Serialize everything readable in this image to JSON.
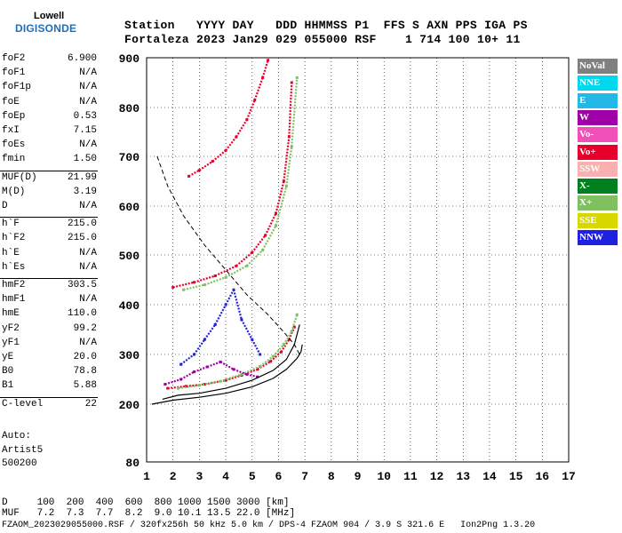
{
  "logo": {
    "top": "Lowell",
    "bottom": "DIGISONDE"
  },
  "header": {
    "row1": "Station   YYYY DAY   DDD HHMMSS P1  FFS S AXN PPS IGA PS",
    "row2": "Fortaleza 2023 Jan29 029 055000 RSF    1 714 100 10+ 11"
  },
  "params": [
    {
      "name": "foF2",
      "value": "6.900"
    },
    {
      "name": "foF1",
      "value": "N/A"
    },
    {
      "name": "foF1p",
      "value": "N/A"
    },
    {
      "name": "foE",
      "value": "N/A"
    },
    {
      "name": "foEp",
      "value": "0.53"
    },
    {
      "name": "fxI",
      "value": "7.15"
    },
    {
      "name": "foEs",
      "value": "N/A"
    },
    {
      "name": "fmin",
      "value": "1.50"
    },
    {
      "name": "MUF(D)",
      "value": "21.99"
    },
    {
      "name": "M(D)",
      "value": "3.19"
    },
    {
      "name": "D",
      "value": "N/A"
    },
    {
      "name": "h`F",
      "value": "215.0"
    },
    {
      "name": "h`F2",
      "value": "215.0"
    },
    {
      "name": "h`E",
      "value": "N/A"
    },
    {
      "name": "h`Es",
      "value": "N/A"
    },
    {
      "name": "hmF2",
      "value": "303.5"
    },
    {
      "name": "hmF1",
      "value": "N/A"
    },
    {
      "name": "hmE",
      "value": "110.0"
    },
    {
      "name": "yF2",
      "value": "99.2"
    },
    {
      "name": "yF1",
      "value": "N/A"
    },
    {
      "name": "yE",
      "value": "20.0"
    },
    {
      "name": "B0",
      "value": "78.8"
    },
    {
      "name": "B1",
      "value": "5.88"
    },
    {
      "name": "C-level",
      "value": "22"
    }
  ],
  "auto": {
    "line1": "Auto:",
    "line2": "Artist5",
    "line3": "500200"
  },
  "legend": [
    {
      "label": "NoVal",
      "color": "#808080"
    },
    {
      "label": "NNE",
      "color": "#00d8f0"
    },
    {
      "label": "E",
      "color": "#22b8e8"
    },
    {
      "label": "W",
      "color": "#a000a8"
    },
    {
      "label": "Vo-",
      "color": "#f050b8"
    },
    {
      "label": "Vo+",
      "color": "#e8002c"
    },
    {
      "label": "SSW",
      "color": "#f8b0b0"
    },
    {
      "label": "X-",
      "color": "#00801e"
    },
    {
      "label": "X+",
      "color": "#80c060"
    },
    {
      "label": "SSE",
      "color": "#d8d800"
    },
    {
      "label": "NNW",
      "color": "#2020e0"
    }
  ],
  "bottom": {
    "line1": "D     100  200  400  600  800 1000 1500 3000 [km]",
    "line2": "MUF   7.2  7.3  7.7  8.2  9.0 10.1 13.5 22.0 [MHz]",
    "line3": "FZAOM_2023029055000.RSF / 320fx256h 50 kHz 5.0 km / DPS-4 FZAOM 904 / 3.9 S 321.6 E   Ion2Png 1.3.20"
  },
  "chart_data": {
    "type": "scatter",
    "xlim": [
      1,
      17
    ],
    "ylim": [
      80,
      900
    ],
    "x_ticks": [
      1,
      2,
      3,
      4,
      5,
      6,
      7,
      8,
      9,
      10,
      11,
      12,
      13,
      14,
      15,
      16,
      17
    ],
    "y_ticks": [
      80,
      200,
      300,
      400,
      500,
      600,
      700,
      800,
      900
    ],
    "grid": true,
    "legend_placement": "right",
    "profile_curve": {
      "x": [
        1.2,
        2.0,
        3.0,
        4.0,
        5.0,
        5.8,
        6.3,
        6.7,
        6.85,
        6.9
      ],
      "y": [
        200,
        208,
        214,
        222,
        235,
        252,
        270,
        292,
        305,
        320
      ]
    },
    "model_curve": {
      "x": [
        1.6,
        2.2,
        3.0,
        4.0,
        5.0,
        5.8,
        6.3,
        6.6,
        6.8
      ],
      "y": [
        210,
        218,
        222,
        232,
        248,
        268,
        290,
        320,
        360
      ]
    },
    "dashed_curve": {
      "x": [
        1.4,
        1.8,
        2.4,
        3.2,
        4.0,
        4.8,
        5.6,
        6.2,
        6.6,
        6.8
      ],
      "y": [
        700,
        640,
        580,
        520,
        470,
        420,
        380,
        345,
        320,
        300
      ]
    },
    "traces": [
      {
        "name": "Vo+",
        "points": [
          [
            1.8,
            232
          ],
          [
            2.5,
            236
          ],
          [
            3.2,
            240
          ],
          [
            4.0,
            248
          ],
          [
            4.6,
            258
          ],
          [
            5.2,
            270
          ],
          [
            5.7,
            286
          ],
          [
            6.1,
            305
          ],
          [
            6.4,
            330
          ],
          [
            6.6,
            355
          ]
        ]
      },
      {
        "name": "X+",
        "points": [
          [
            2.2,
            232
          ],
          [
            3.0,
            238
          ],
          [
            3.8,
            246
          ],
          [
            4.6,
            260
          ],
          [
            5.3,
            276
          ],
          [
            5.8,
            296
          ],
          [
            6.2,
            320
          ],
          [
            6.5,
            346
          ],
          [
            6.7,
            380
          ]
        ]
      },
      {
        "name": "Vo+",
        "points": [
          [
            2.0,
            435
          ],
          [
            2.8,
            445
          ],
          [
            3.6,
            458
          ],
          [
            4.4,
            478
          ],
          [
            5.0,
            505
          ],
          [
            5.5,
            540
          ],
          [
            5.9,
            585
          ],
          [
            6.2,
            650
          ],
          [
            6.4,
            740
          ],
          [
            6.5,
            850
          ]
        ]
      },
      {
        "name": "X+",
        "points": [
          [
            2.4,
            430
          ],
          [
            3.2,
            440
          ],
          [
            4.0,
            455
          ],
          [
            4.8,
            478
          ],
          [
            5.4,
            510
          ],
          [
            5.9,
            560
          ],
          [
            6.3,
            640
          ],
          [
            6.5,
            720
          ],
          [
            6.7,
            860
          ]
        ]
      },
      {
        "name": "Vo+",
        "points": [
          [
            2.6,
            660
          ],
          [
            3.0,
            672
          ],
          [
            3.5,
            690
          ],
          [
            4.0,
            712
          ],
          [
            4.4,
            740
          ],
          [
            4.8,
            775
          ],
          [
            5.1,
            815
          ],
          [
            5.4,
            860
          ],
          [
            5.6,
            895
          ]
        ]
      },
      {
        "name": "NNW",
        "points": [
          [
            2.3,
            280
          ],
          [
            2.8,
            300
          ],
          [
            3.2,
            330
          ],
          [
            3.6,
            360
          ],
          [
            4.0,
            400
          ],
          [
            4.3,
            430
          ],
          [
            4.6,
            370
          ],
          [
            5.0,
            330
          ],
          [
            5.3,
            300
          ]
        ]
      },
      {
        "name": "W",
        "points": [
          [
            1.7,
            240
          ],
          [
            2.3,
            250
          ],
          [
            2.8,
            265
          ],
          [
            3.3,
            275
          ],
          [
            3.8,
            285
          ],
          [
            4.3,
            270
          ],
          [
            4.8,
            260
          ],
          [
            5.2,
            255
          ]
        ]
      }
    ]
  }
}
